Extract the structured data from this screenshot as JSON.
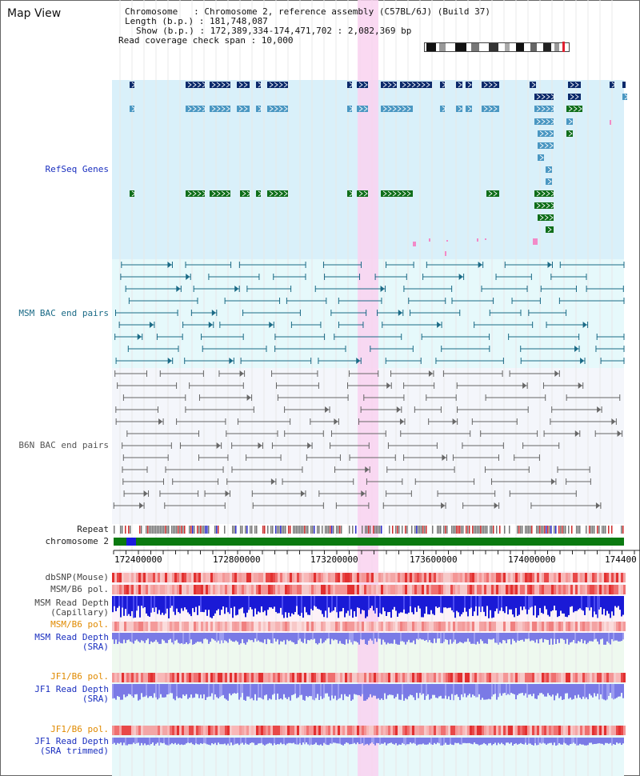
{
  "title": "Map View",
  "header": {
    "line1": "Chromosome   : Chromosome 2, reference assembly (C57BL/6J) (Build 37)",
    "line2": "Length (b.p.) : 181,748,087",
    "line3": "Show (b.p.) : 172,389,334-174,471,702 : 2,082,369 bp",
    "line4": "Read coverage check span : 10,000"
  },
  "labels": {
    "refseq": "RefSeq Genes",
    "msm_bac": "MSM BAC end pairs",
    "b6n_bac": "B6N BAC end pairs",
    "repeat": "Repeat",
    "chromosome": "chromosome 2",
    "dbsnp": "dbSNP(Mouse)",
    "msm_pol1": "MSM/B6 pol.",
    "msm_depth_cap_1": "MSM Read Depth",
    "msm_depth_cap_2": "(Capillary)",
    "msm_pol2": "MSM/B6 pol.",
    "msm_depth_sra_1": "MSM Read Depth",
    "msm_depth_sra_2": "(SRA)",
    "jf1_pol1": "JF1/B6 pol.",
    "jf1_depth_sra_1": "JF1 Read Depth",
    "jf1_depth_sra_2": "(SRA)",
    "jf1_pol2": "JF1/B6 pol.",
    "jf1_depth_trim_1": "JF1 Read Depth",
    "jf1_depth_trim_2": "(SRA trimmed)"
  },
  "ticks": [
    "172400000",
    "172800000",
    "173200000",
    "173600000",
    "174000000",
    "174400"
  ],
  "colors": {
    "refseq_bg": "#d9f0fa",
    "msm_bg": "#e6f9fb",
    "b6n_bg": "#f4f6fb",
    "highlight": "#f9d2f0",
    "gene_dark": "#0b2a6b",
    "gene_mid": "#4a97c2",
    "gene_green": "#0f6e1a",
    "bac_msm": "#1a6a86",
    "bac_b6n": "#666666",
    "chrom_green": "#0a7a10",
    "label_blue": "#1a2fbf",
    "label_teal": "#1a6a86",
    "label_orange": "#e08a00"
  }
}
